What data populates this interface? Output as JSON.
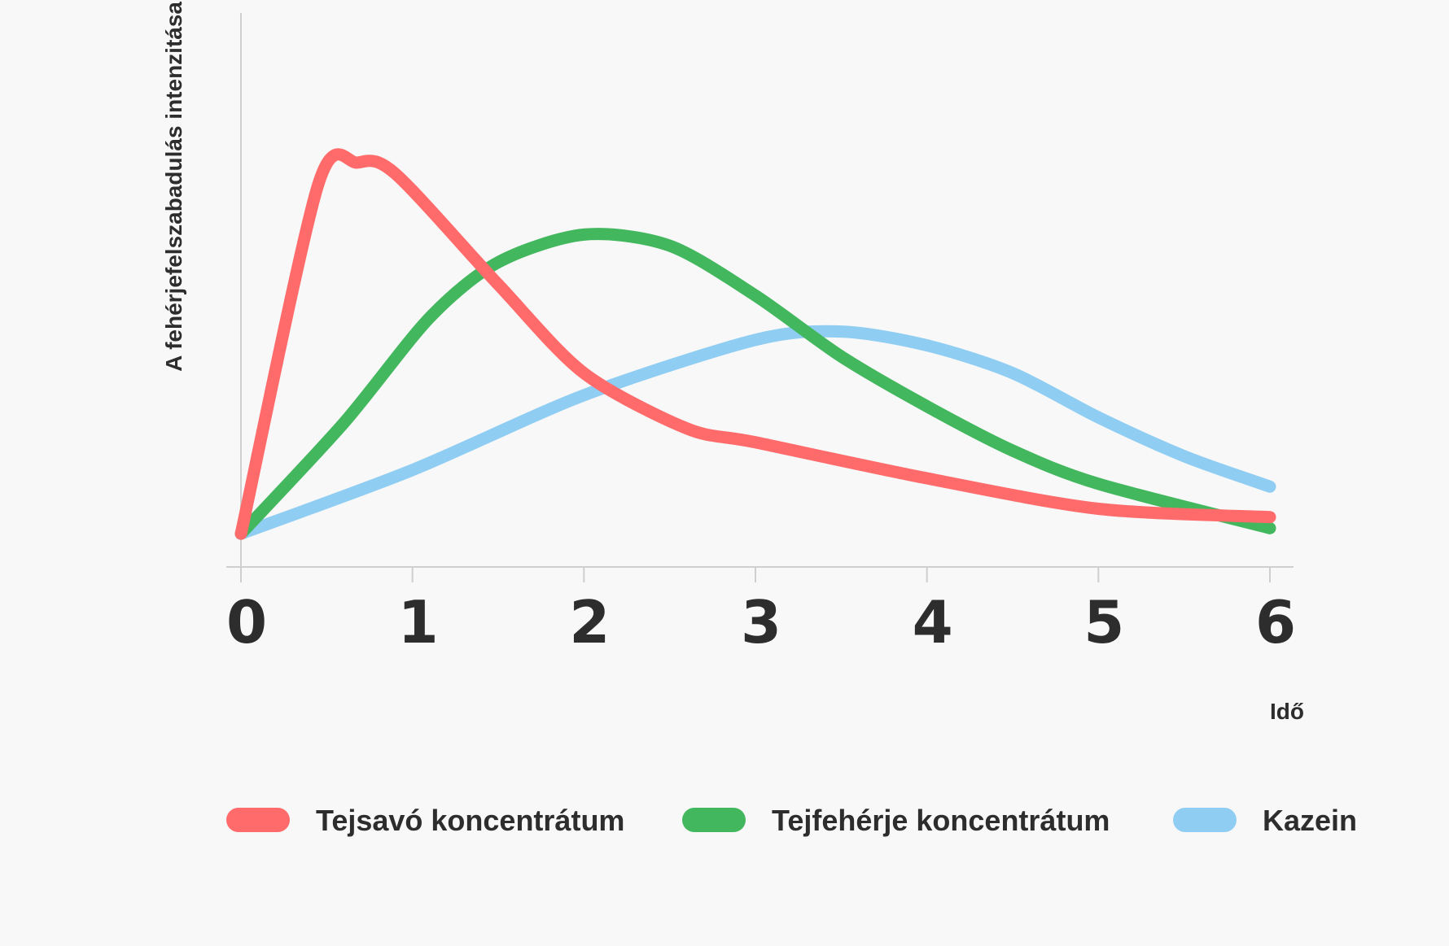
{
  "chart_data": {
    "type": "line",
    "title": "",
    "xlabel": "Idő",
    "ylabel": "A fehérjefelszabadulás intenzitása",
    "x": [
      0,
      1,
      2,
      3,
      4,
      5,
      6
    ],
    "xlim": [
      0,
      6
    ],
    "ylim": [
      0,
      10
    ],
    "grid": false,
    "y_tick_labels": false,
    "legend_position": "bottom",
    "series": [
      {
        "name": "Tejsavó koncentrátum",
        "color": "#ff6b6b",
        "points": [
          [
            0,
            0.6
          ],
          [
            0.45,
            6.9
          ],
          [
            0.68,
            7.3
          ],
          [
            0.9,
            7.1
          ],
          [
            1.5,
            5.1
          ],
          [
            2.0,
            3.5
          ],
          [
            2.6,
            2.5
          ],
          [
            3.0,
            2.25
          ],
          [
            4.0,
            1.6
          ],
          [
            5.0,
            1.05
          ],
          [
            6.0,
            0.9
          ]
        ]
      },
      {
        "name": "Tejfehérje koncentrátum",
        "color": "#43b75e",
        "points": [
          [
            0,
            0.6
          ],
          [
            0.6,
            2.6
          ],
          [
            1.1,
            4.5
          ],
          [
            1.5,
            5.5
          ],
          [
            2.0,
            6.0
          ],
          [
            2.5,
            5.8
          ],
          [
            3.0,
            4.9
          ],
          [
            3.5,
            3.8
          ],
          [
            4.0,
            2.9
          ],
          [
            4.5,
            2.1
          ],
          [
            5.0,
            1.5
          ],
          [
            6.0,
            0.7
          ]
        ]
      },
      {
        "name": "Kazein",
        "color": "#8fcdf3",
        "points": [
          [
            0,
            0.6
          ],
          [
            1.0,
            1.75
          ],
          [
            2.0,
            3.1
          ],
          [
            3.0,
            4.1
          ],
          [
            3.5,
            4.25
          ],
          [
            4.0,
            4.0
          ],
          [
            4.5,
            3.5
          ],
          [
            5.0,
            2.7
          ],
          [
            5.5,
            2.0
          ],
          [
            6.0,
            1.45
          ]
        ]
      }
    ]
  }
}
